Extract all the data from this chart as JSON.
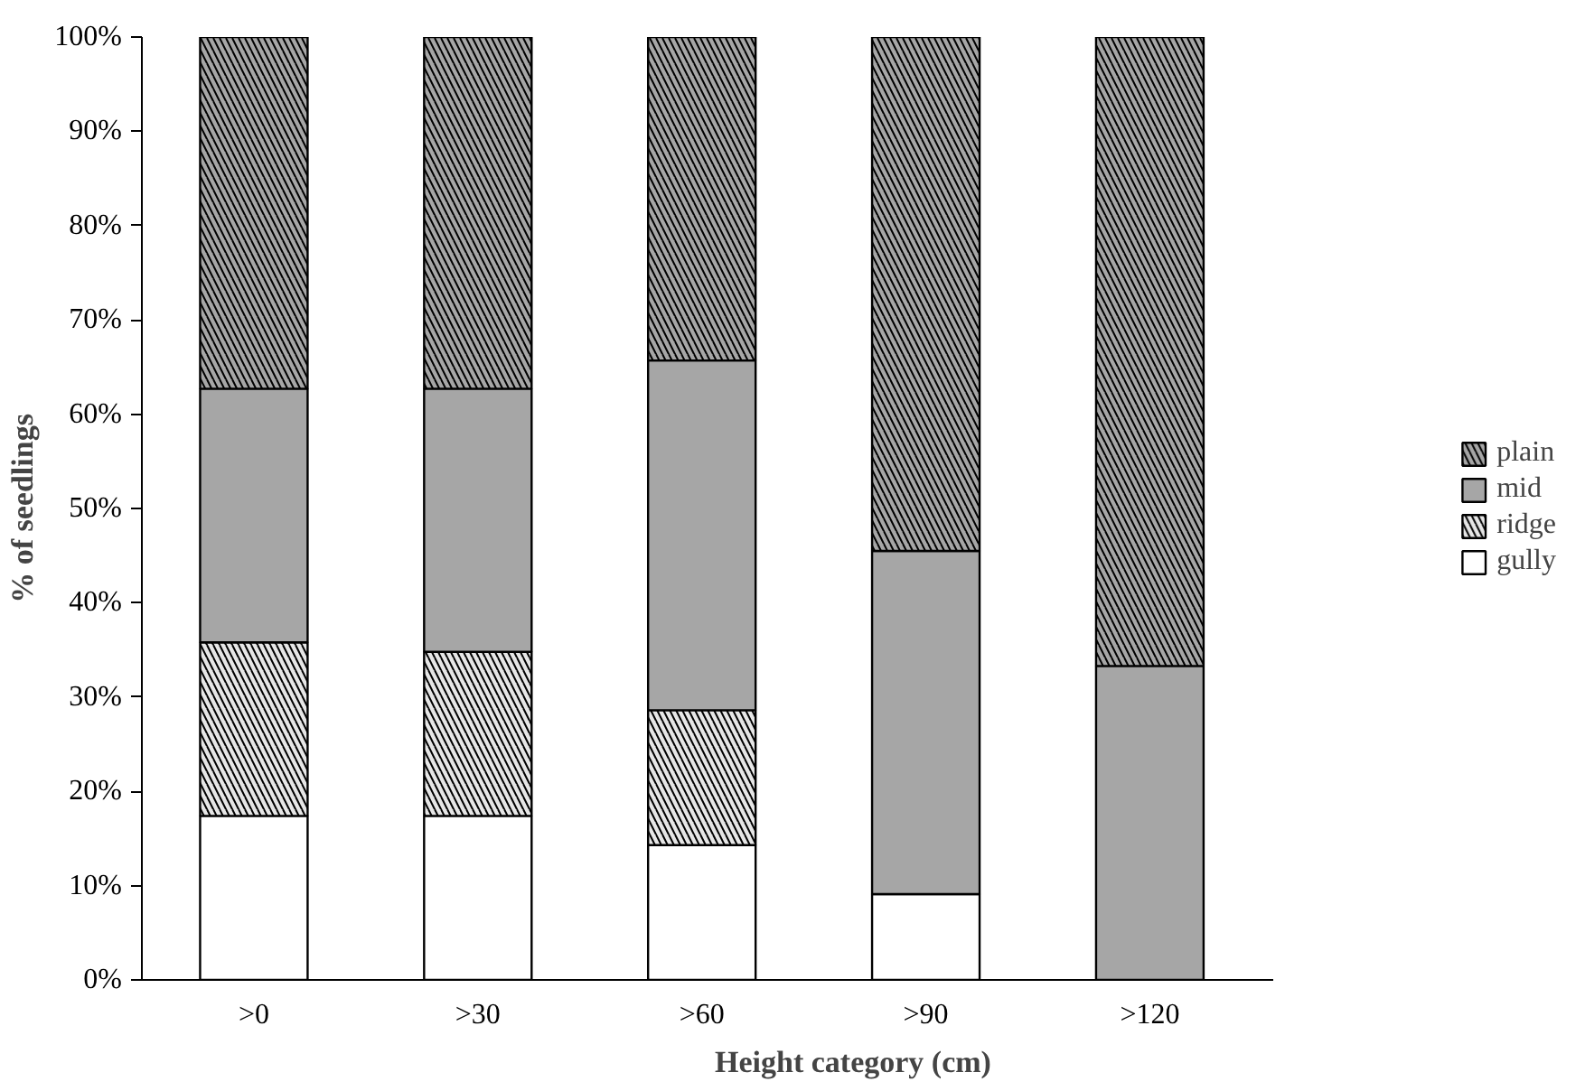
{
  "chart_data": {
    "type": "bar",
    "stacked": true,
    "xlabel": "Height category (cm)",
    "ylabel": "% of seedlings",
    "categories": [
      ">0",
      ">30",
      ">60",
      ">90",
      ">120"
    ],
    "series": [
      {
        "name": "gully",
        "color": "#ffffff",
        "values": [
          17.4,
          17.4,
          14.3,
          9.1,
          0
        ]
      },
      {
        "name": "ridge",
        "color": "#e6e6e6",
        "values": [
          18.4,
          17.4,
          14.3,
          0,
          0
        ]
      },
      {
        "name": "mid",
        "color": "#a6a6a6",
        "values": [
          26.9,
          27.9,
          37.1,
          36.4,
          33.3
        ]
      },
      {
        "name": "plain",
        "color": "#a6a6a6",
        "values": [
          37.3,
          37.3,
          34.3,
          54.5,
          66.7
        ]
      }
    ],
    "ylim": [
      0,
      100
    ],
    "yticks": [
      {
        "value": 0,
        "label": "0%"
      },
      {
        "value": 10,
        "label": "10%"
      },
      {
        "value": 20,
        "label": "20%"
      },
      {
        "value": 30,
        "label": "30%"
      },
      {
        "value": 40,
        "label": "40%"
      },
      {
        "value": 50,
        "label": "50%"
      },
      {
        "value": 60,
        "label": "60%"
      },
      {
        "value": 70,
        "label": "70%"
      },
      {
        "value": 80,
        "label": "80%"
      },
      {
        "value": 90,
        "label": "90%"
      },
      {
        "value": 100,
        "label": "100%"
      }
    ],
    "grid": false,
    "legend": "right"
  }
}
